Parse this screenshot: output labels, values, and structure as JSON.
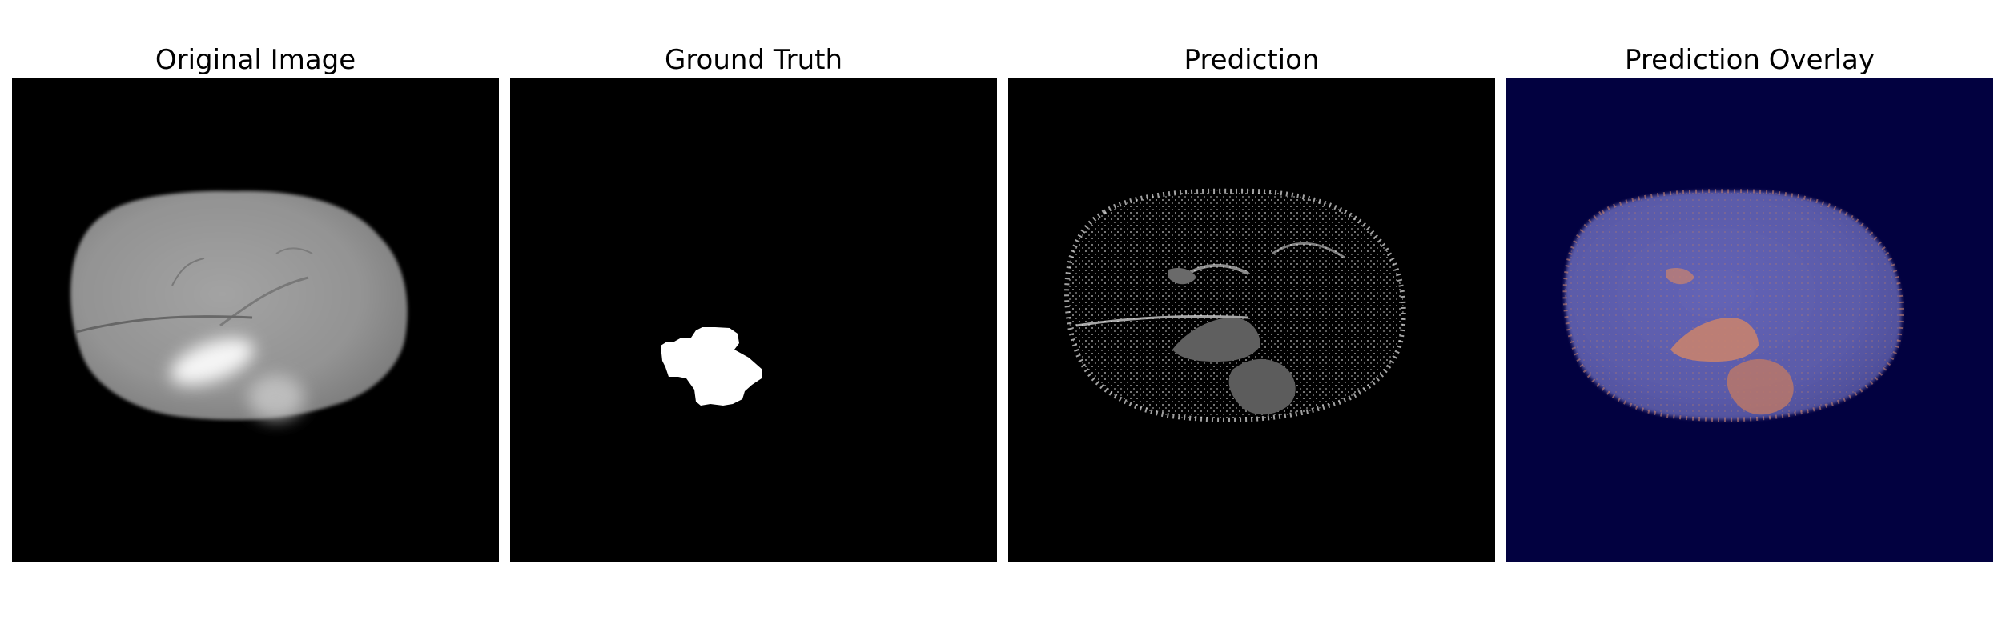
{
  "panels": [
    {
      "title": "Original Image",
      "image_semantic": "brain-mri-slice"
    },
    {
      "title": "Ground Truth",
      "image_semantic": "tumor-segmentation-mask"
    },
    {
      "title": "Prediction",
      "image_semantic": "predicted-segmentation-mask"
    },
    {
      "title": "Prediction Overlay",
      "image_semantic": "prediction-overlay-on-mri"
    }
  ],
  "colors": {
    "figure_background": "#ffffff",
    "image_background": "#000000",
    "overlay_background": "#020140",
    "overlay_brain": "#5a5aa8",
    "overlay_tumor": "#c7826f",
    "mask_white": "#ffffff",
    "mri_gray": "#9a9a9a"
  }
}
